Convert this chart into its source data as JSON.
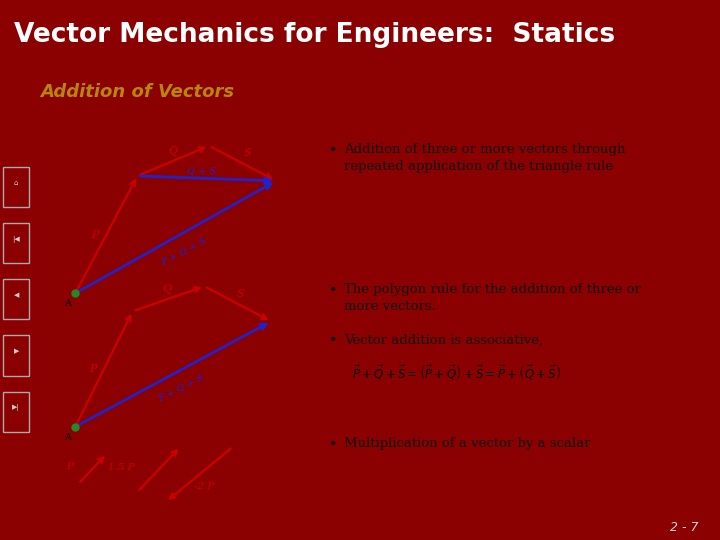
{
  "title": "Vector Mechanics for Engineers:  Statics",
  "subtitle": "Addition of Vectors",
  "title_bg": "#8B0000",
  "subtitle_bg": "#F0F0A0",
  "subtitle_color": "#B8860B",
  "title_color": "#FFFFFF",
  "body_bg": "#FFFFFF",
  "footer_bg": "#8B0000",
  "footer_text": "2 - 7",
  "footer_color": "#D0D0D0",
  "red_color": "#CC0000",
  "blue_color": "#2222CC",
  "green_dot": "#228B22",
  "bullet1": "Addition of three or more vectors through\nrepeated application of the triangle rule",
  "bullet2": "The polygon rule for the addition of three or\nmore vectors.",
  "bullet3": "Vector addition is associative,",
  "bullet4": "Multiplication of a vector by a scalar",
  "body_text_color": "#111111",
  "nav_icon_color": "#CCCCCC"
}
